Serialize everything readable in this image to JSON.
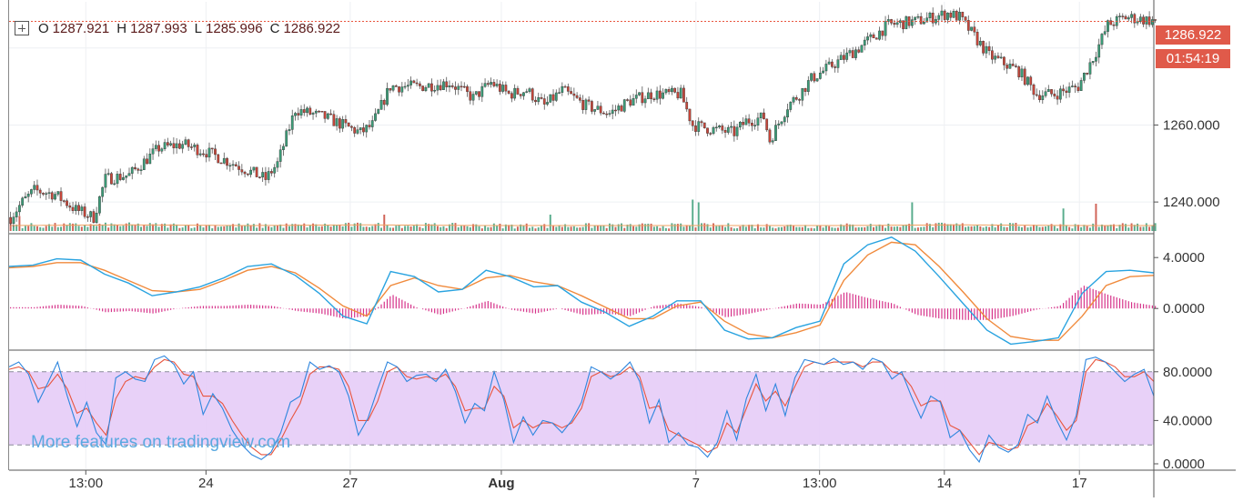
{
  "legend": {
    "open_label": "O",
    "open": "1287.921",
    "high_label": "H",
    "high": "1287.993",
    "low_label": "L",
    "low": "1285.996",
    "close_label": "C",
    "close": "1286.922"
  },
  "price_badge": "1286.922",
  "countdown_badge": "01:54:19",
  "watermark": "More features on tradingview.com",
  "colors": {
    "up": "#3b9d78",
    "down": "#c8463a",
    "macd_line": "#29a3e0",
    "signal_line": "#f08a3c",
    "histogram": "#d6338a",
    "stoch_k": "#2e86de",
    "stoch_d": "#e8553e",
    "stoch_band": "#e6ccf7",
    "price_line": "#e8553e",
    "badge": "#e05a4a",
    "volume_ma": "#f0a060"
  },
  "chart_data": [
    {
      "type": "candlestick",
      "title": "",
      "x_ticks": [
        "13:00",
        "24",
        "27",
        "Aug",
        "7",
        "13:00",
        "14",
        "17"
      ],
      "y_ticks": [
        "1240.000",
        "1260.000"
      ],
      "ylim": [
        1232,
        1292
      ],
      "last_price": 1286.922,
      "anchors": [
        [
          0,
          1236
        ],
        [
          4,
          1240
        ],
        [
          8,
          1243
        ],
        [
          15,
          1242
        ],
        [
          22,
          1238
        ],
        [
          28,
          1236
        ],
        [
          32,
          1246
        ],
        [
          40,
          1247
        ],
        [
          50,
          1254
        ],
        [
          58,
          1255
        ],
        [
          66,
          1253
        ],
        [
          75,
          1250
        ],
        [
          86,
          1246
        ],
        [
          90,
          1250
        ],
        [
          96,
          1264
        ],
        [
          106,
          1262
        ],
        [
          112,
          1260
        ],
        [
          118,
          1258
        ],
        [
          122,
          1260
        ],
        [
          128,
          1270
        ],
        [
          138,
          1270
        ],
        [
          148,
          1271
        ],
        [
          156,
          1267
        ],
        [
          162,
          1271
        ],
        [
          168,
          1268
        ],
        [
          174,
          1269
        ],
        [
          180,
          1265
        ],
        [
          186,
          1269
        ],
        [
          194,
          1265
        ],
        [
          202,
          1263
        ],
        [
          208,
          1266
        ],
        [
          216,
          1268
        ],
        [
          226,
          1268
        ],
        [
          230,
          1260
        ],
        [
          236,
          1259
        ],
        [
          244,
          1258
        ],
        [
          248,
          1261
        ],
        [
          254,
          1262
        ],
        [
          256,
          1256
        ],
        [
          262,
          1265
        ],
        [
          266,
          1268
        ],
        [
          270,
          1272
        ],
        [
          278,
          1276
        ],
        [
          286,
          1280
        ],
        [
          296,
          1286
        ],
        [
          306,
          1287
        ],
        [
          316,
          1289
        ],
        [
          320,
          1288
        ],
        [
          330,
          1278
        ],
        [
          340,
          1274
        ],
        [
          346,
          1268
        ],
        [
          352,
          1268
        ],
        [
          360,
          1270
        ],
        [
          366,
          1279
        ],
        [
          370,
          1286
        ],
        [
          376,
          1288
        ],
        [
          386,
          1287
        ]
      ],
      "volume_ylim": [
        0,
        80
      ],
      "volume_anchors": [
        [
          0,
          6
        ],
        [
          40,
          7
        ],
        [
          80,
          6
        ],
        [
          120,
          7
        ],
        [
          160,
          6
        ],
        [
          200,
          6
        ],
        [
          240,
          6
        ],
        [
          280,
          6
        ],
        [
          320,
          7
        ],
        [
          360,
          6
        ],
        [
          386,
          6
        ]
      ],
      "volume_spikes": [
        [
          3,
          22
        ],
        [
          126,
          24
        ],
        [
          182,
          24
        ],
        [
          230,
          46
        ],
        [
          232,
          42
        ],
        [
          304,
          42
        ],
        [
          355,
          33
        ],
        [
          366,
          40
        ]
      ]
    },
    {
      "type": "line",
      "title": "",
      "y_ticks": [
        "4.0000",
        "0.0000"
      ],
      "ylim": [
        -3.2,
        5.8
      ],
      "series": [
        {
          "values": [
            3.3,
            3.4,
            3.9,
            3.8,
            2.7,
            2.0,
            1.0,
            1.3,
            1.7,
            2.4,
            3.3,
            3.5,
            2.6,
            1.2,
            -0.6,
            -1.2,
            2.9,
            2.5,
            1.3,
            1.5,
            3.0,
            2.5,
            1.7,
            1.8,
            0.5,
            -0.3,
            -1.4,
            -0.6,
            0.6,
            0.6,
            -1.7,
            -2.4,
            -2.3,
            -1.5,
            -1.0,
            3.5,
            5.0,
            5.6,
            4.5,
            2.5,
            0.4,
            -1.7,
            -2.8,
            -2.6,
            -2.3,
            1.2,
            2.9,
            3.0,
            2.8
          ]
        },
        {
          "values": [
            3.2,
            3.3,
            3.6,
            3.6,
            3.0,
            2.2,
            1.4,
            1.3,
            1.5,
            2.2,
            3.0,
            3.3,
            2.8,
            1.6,
            0.2,
            -0.6,
            1.8,
            2.4,
            1.8,
            1.5,
            2.4,
            2.6,
            2.1,
            1.8,
            1.0,
            0.1,
            -0.8,
            -0.8,
            0.2,
            0.5,
            -1.0,
            -2.0,
            -2.3,
            -1.9,
            -1.3,
            2.2,
            4.2,
            5.2,
            5.0,
            3.3,
            1.3,
            -0.8,
            -2.2,
            -2.5,
            -2.5,
            -0.6,
            1.8,
            2.5,
            2.6
          ]
        },
        {
          "values": [
            0.1,
            0.1,
            0.3,
            0.2,
            -0.3,
            -0.2,
            -0.4,
            0.0,
            0.2,
            0.2,
            0.3,
            0.2,
            -0.2,
            -0.4,
            -0.8,
            -0.6,
            1.1,
            0.1,
            -0.5,
            0.0,
            0.6,
            -0.1,
            -0.4,
            0.0,
            -0.5,
            -0.4,
            -0.6,
            0.2,
            0.4,
            0.1,
            -0.7,
            -0.4,
            0.0,
            0.4,
            0.3,
            1.3,
            0.8,
            0.4,
            -0.5,
            -0.8,
            -0.9,
            -0.9,
            -0.6,
            -0.1,
            0.2,
            1.8,
            1.1,
            0.5,
            0.2
          ]
        }
      ]
    },
    {
      "type": "line",
      "title": "",
      "y_ticks": [
        "80.0000",
        "40.0000",
        "0.0000"
      ],
      "ylim": [
        0,
        97
      ],
      "band": [
        20,
        80
      ],
      "series": [
        {
          "values": [
            84,
            88,
            78,
            55,
            71,
            88,
            60,
            35,
            55,
            30,
            20,
            75,
            80,
            74,
            72,
            90,
            93,
            86,
            70,
            80,
            45,
            62,
            50,
            32,
            20,
            12,
            8,
            14,
            30,
            55,
            60,
            88,
            82,
            85,
            80,
            60,
            28,
            42,
            66,
            88,
            84,
            72,
            77,
            78,
            72,
            82,
            64,
            38,
            54,
            48,
            80,
            57,
            22,
            43,
            28,
            40,
            38,
            30,
            40,
            55,
            84,
            80,
            74,
            80,
            88,
            72,
            38,
            57,
            22,
            30,
            20,
            18,
            10,
            22,
            48,
            24,
            58,
            78,
            48,
            70,
            44,
            75,
            90,
            88,
            86,
            91,
            86,
            88,
            82,
            91,
            88,
            74,
            80,
            60,
            42,
            60,
            55,
            26,
            32,
            16,
            6,
            28,
            18,
            14,
            20,
            45,
            38,
            60,
            40,
            24,
            44,
            90,
            92,
            88,
            80,
            72,
            78,
            82,
            60
          ]
        },
        {
          "values": [
            82,
            84,
            80,
            66,
            68,
            78,
            66,
            46,
            50,
            38,
            28,
            58,
            72,
            76,
            74,
            84,
            90,
            88,
            78,
            76,
            60,
            60,
            54,
            40,
            28,
            18,
            12,
            12,
            24,
            40,
            54,
            78,
            84,
            84,
            82,
            68,
            40,
            40,
            56,
            80,
            84,
            76,
            74,
            76,
            74,
            78,
            68,
            48,
            50,
            50,
            68,
            60,
            34,
            40,
            34,
            38,
            38,
            34,
            38,
            50,
            76,
            80,
            76,
            78,
            84,
            76,
            50,
            52,
            32,
            28,
            24,
            20,
            14,
            18,
            38,
            30,
            50,
            70,
            56,
            64,
            52,
            68,
            84,
            88,
            86,
            88,
            88,
            88,
            84,
            88,
            88,
            80,
            78,
            68,
            52,
            56,
            56,
            36,
            32,
            22,
            12,
            22,
            20,
            16,
            18,
            36,
            40,
            54,
            44,
            32,
            40,
            80,
            90,
            88,
            84,
            76,
            76,
            80,
            72
          ]
        }
      ]
    }
  ]
}
